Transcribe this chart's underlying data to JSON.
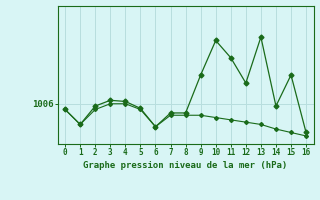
{
  "x": [
    0,
    1,
    2,
    3,
    4,
    5,
    6,
    7,
    8,
    9,
    10,
    11,
    12,
    13,
    14,
    15,
    16
  ],
  "line1": [
    1005.5,
    1004.2,
    1005.8,
    1006.3,
    1006.2,
    1005.6,
    1004.0,
    1005.2,
    1005.2,
    1008.5,
    1011.5,
    1010.0,
    1007.8,
    1011.8,
    1005.8,
    1008.5,
    1003.5
  ],
  "line2": [
    1005.5,
    1004.2,
    1005.5,
    1006.0,
    1006.0,
    1005.5,
    1004.0,
    1005.0,
    1005.0,
    1005.0,
    1004.8,
    1004.6,
    1004.4,
    1004.2,
    1003.8,
    1003.5,
    1003.2
  ],
  "ytick_val": 1006,
  "xlabel": "Graphe pression niveau de la mer (hPa)",
  "line_color": "#1a6b1a",
  "bg_color": "#d8f5f5",
  "grid_color": "#b8dede",
  "ylim_min": 1002.5,
  "ylim_max": 1014.5
}
